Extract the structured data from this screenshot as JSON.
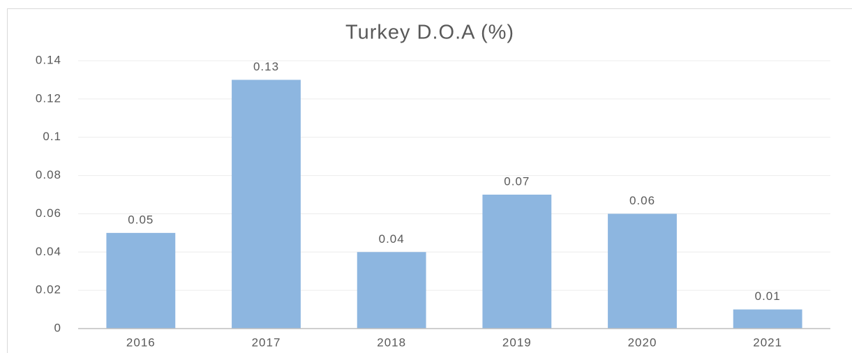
{
  "chart_data": {
    "type": "bar",
    "title": "Turkey D.O.A (%)",
    "categories": [
      "2016",
      "2017",
      "2018",
      "2019",
      "2020",
      "2021"
    ],
    "values": [
      0.05,
      0.13,
      0.04,
      0.07,
      0.06,
      0.01
    ],
    "color": "#8db6e0",
    "ylim": [
      0,
      0.14
    ],
    "yticks": [
      0,
      0.02,
      0.04,
      0.06,
      0.08,
      0.1,
      0.12,
      0.14
    ],
    "grid": true
  }
}
